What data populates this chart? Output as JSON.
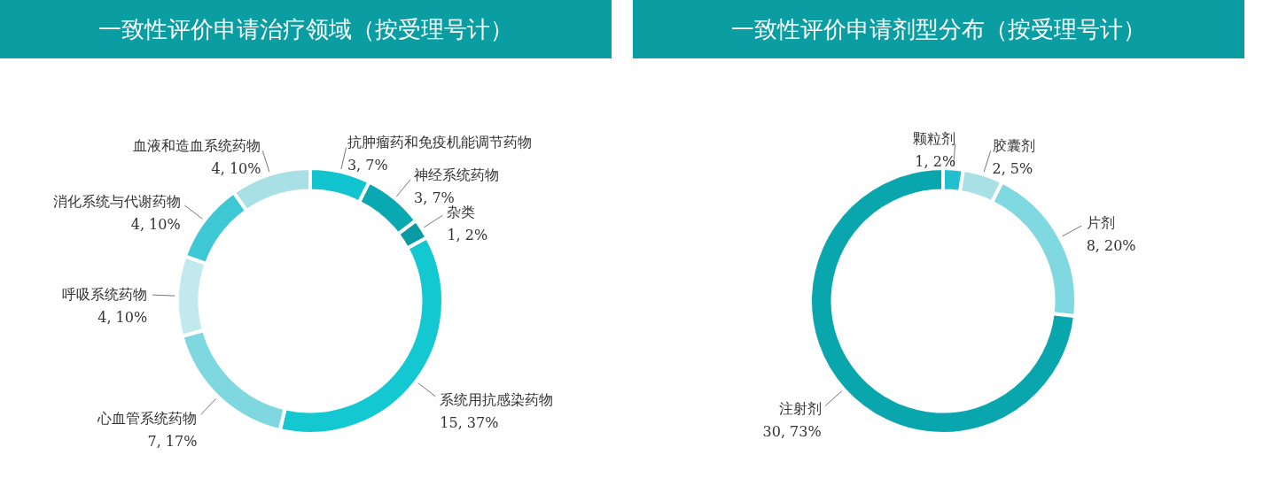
{
  "chart_data": [
    {
      "type": "donut",
      "title": "一致性评价申请治疗领域（按受理号计）",
      "categories": [
        "抗肿瘤药和免疫机能调节药物",
        "神经系统药物",
        "杂类",
        "系统用抗感染药物",
        "心血管系统药物",
        "呼吸系统药物",
        "消化系统与代谢药物",
        "血液和造血系统药物"
      ],
      "values": [
        3,
        3,
        1,
        15,
        7,
        4,
        4,
        4
      ],
      "value_labels": [
        "3, 7%",
        "3, 7%",
        "1, 2%",
        "15, 37%",
        "7, 17%",
        "4, 10%",
        "4, 10%",
        "4, 10%"
      ],
      "colors": [
        "#12c4cf",
        "#0aa8b0",
        "#0a9aa2",
        "#14c8d2",
        "#7fd8e0",
        "#c2eaee",
        "#3ec8d4",
        "#a8e0e6"
      ]
    },
    {
      "type": "donut",
      "title": "一致性评价申请剂型分布（按受理号计）",
      "categories": [
        "颗粒剂",
        "胶囊剂",
        "片剂",
        "注射剂"
      ],
      "values": [
        1,
        2,
        8,
        30
      ],
      "value_labels": [
        "1, 2%",
        "2, 5%",
        "8, 20%",
        "30, 73%"
      ],
      "colors": [
        "#22c0cc",
        "#a8e0e6",
        "#80d8e0",
        "#0aa6ae"
      ]
    }
  ]
}
